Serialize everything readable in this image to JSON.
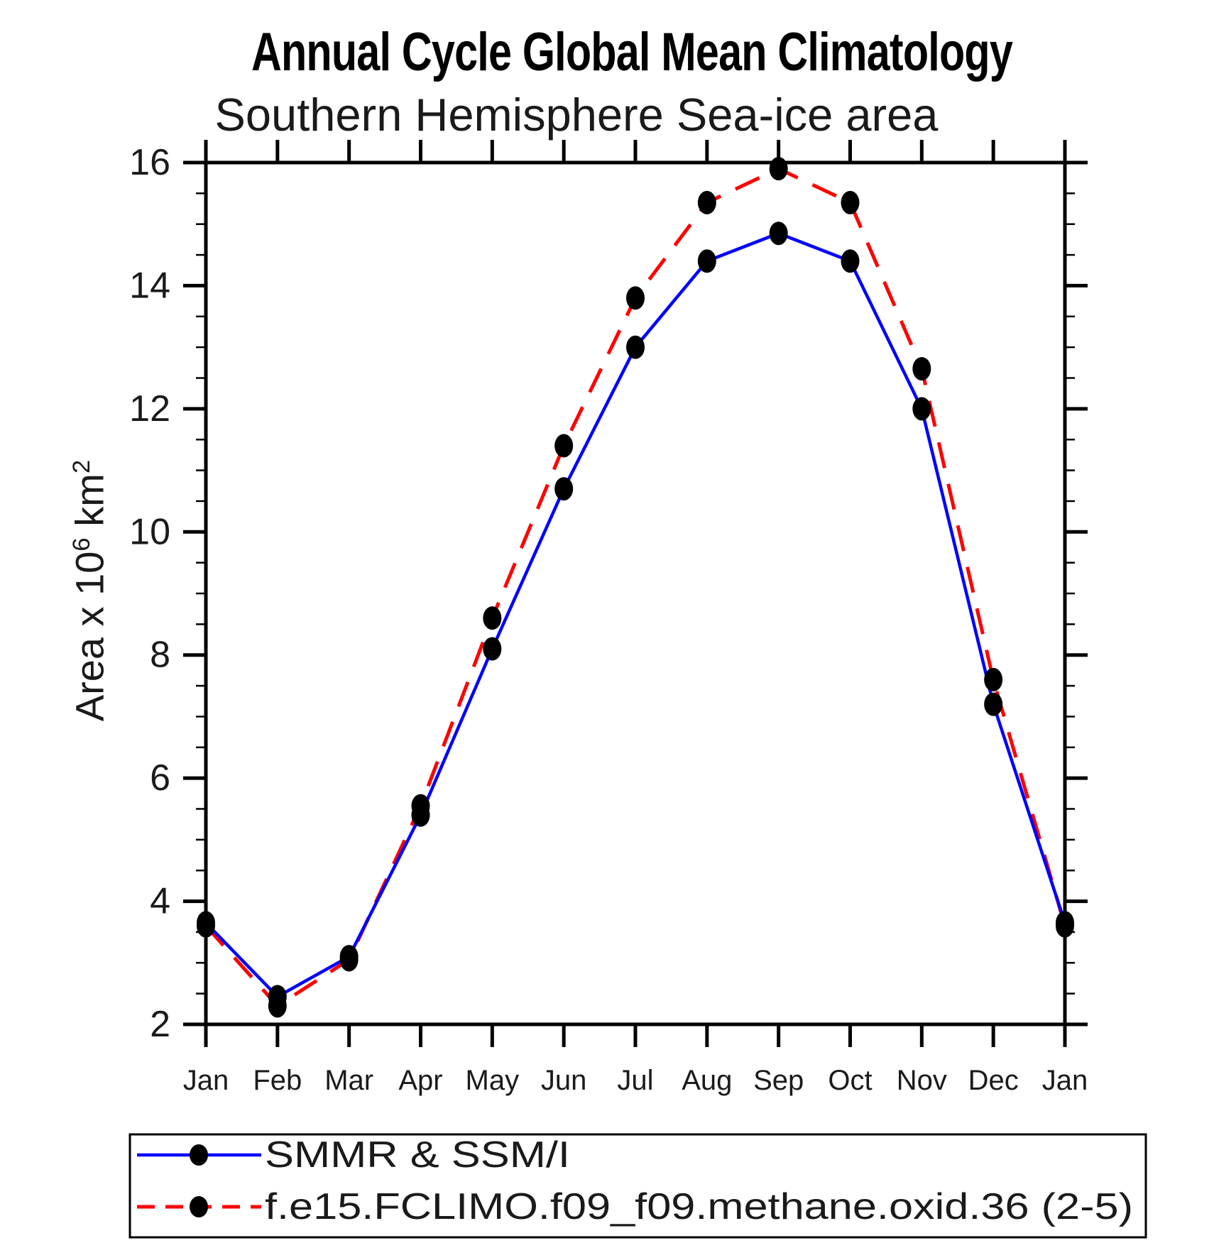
{
  "page": {
    "title": "Annual Cycle Global Mean Climatology",
    "subtitle": "Southern Hemisphere Sea-ice area"
  },
  "y_axis_label": {
    "base": "Area x 10",
    "exponent": "6",
    "unit": " km",
    "unit_exponent": "2",
    "full": "Area x 10^6 km^2"
  },
  "chart_data": {
    "type": "line",
    "title": "Annual Cycle Global Mean Climatology",
    "subtitle": "Southern Hemisphere Sea-ice area",
    "categories": [
      "Jan",
      "Feb",
      "Mar",
      "Apr",
      "May",
      "Jun",
      "Jul",
      "Aug",
      "Sep",
      "Oct",
      "Nov",
      "Dec",
      "Jan"
    ],
    "xlabel": "",
    "ylabel": "Area x 10^6 km^2",
    "ylim": [
      2,
      16
    ],
    "yticks": [
      16,
      14,
      12,
      10,
      8,
      6,
      4,
      2
    ],
    "ytick_minor_step": 0.5,
    "grid": false,
    "legend_position": "bottom",
    "axis_color": "#000000",
    "marker_color": "#000000",
    "series": [
      {
        "name": "SMMR & SSM/I",
        "color": "#0000ff",
        "line_style": "solid",
        "marker": "black-filled-dot",
        "values": [
          3.65,
          2.45,
          3.1,
          5.4,
          8.1,
          10.7,
          13.0,
          14.4,
          14.85,
          14.4,
          12.0,
          7.2,
          3.65
        ]
      },
      {
        "name": "f.e15.FCLIMO.f09_f09.methane.oxid.36 (2-5)",
        "color": "#ff0000",
        "line_style": "dashed",
        "marker": "black-filled-dot",
        "values": [
          3.6,
          2.3,
          3.05,
          5.55,
          8.6,
          11.4,
          13.8,
          15.35,
          15.9,
          15.35,
          12.65,
          7.6,
          3.6
        ]
      }
    ]
  }
}
